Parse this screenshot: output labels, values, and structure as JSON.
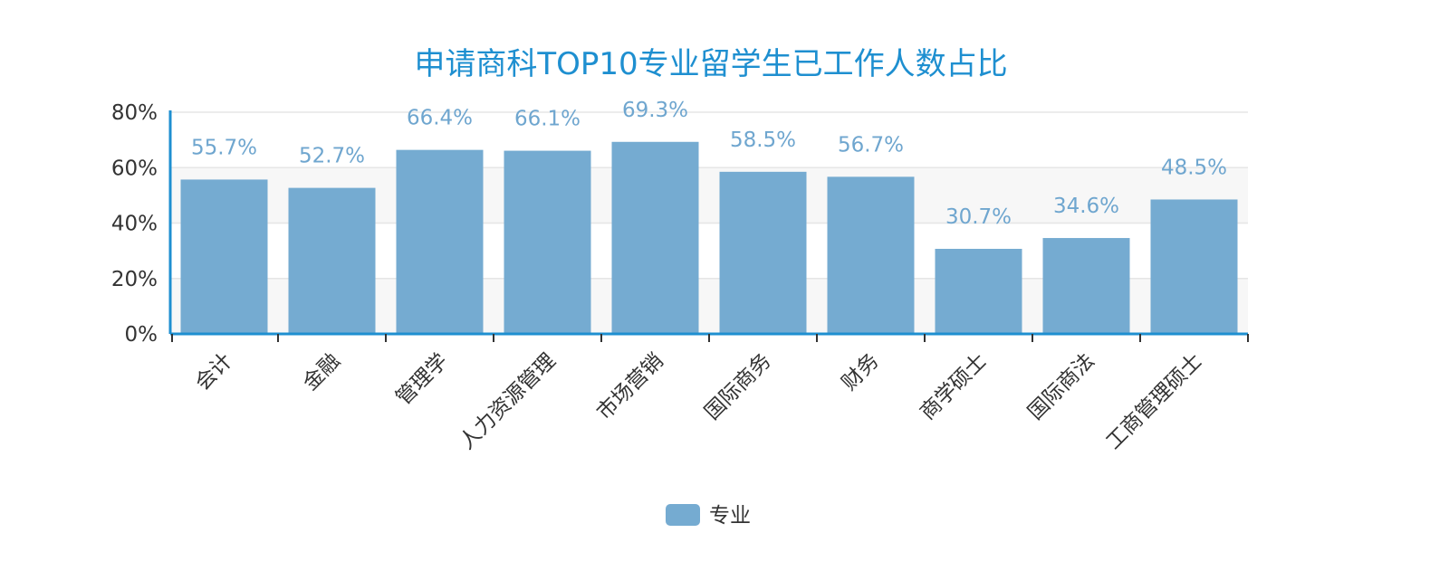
{
  "chart_data": {
    "type": "bar",
    "title": "申请商科TOP10专业留学生已工作人数占比",
    "categories": [
      "会计",
      "金融",
      "管理学",
      "人力资源管理",
      "市场营销",
      "国际商务",
      "财务",
      "商学硕士",
      "国际商法",
      "工商管理硕士"
    ],
    "series": [
      {
        "name": "专业",
        "values": [
          55.7,
          52.7,
          66.4,
          66.1,
          69.3,
          58.5,
          56.7,
          30.7,
          34.6,
          48.5
        ],
        "labels": [
          "55.7%",
          "52.7%",
          "66.4%",
          "66.1%",
          "69.3%",
          "58.5%",
          "56.7%",
          "30.7%",
          "34.6%",
          "48.5%"
        ]
      }
    ],
    "ylim": [
      0,
      80
    ],
    "yticks": [
      0,
      20,
      40,
      60,
      80
    ],
    "ytick_labels": [
      "0%",
      "20%",
      "40%",
      "60%",
      "80%"
    ],
    "xlabel": "",
    "ylabel": "",
    "grid": true,
    "legend_position": "bottom-center",
    "colors": {
      "bar": "#75abd1",
      "label": "#6fa6cf",
      "title": "#1e8fd0",
      "axis": "#1e8fd0",
      "grid": "#e6e6e6",
      "band": "#f7f7f7"
    }
  }
}
